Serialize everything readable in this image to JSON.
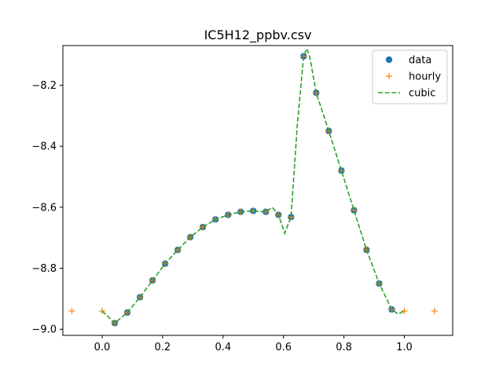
{
  "chart_data": {
    "type": "line",
    "title": "IC5H12_ppbv.csv",
    "xlabel": "",
    "ylabel": "",
    "xlim": [
      -0.13,
      1.16
    ],
    "ylim": [
      -9.02,
      -8.07
    ],
    "xticks": [
      0.0,
      0.2,
      0.4,
      0.6,
      0.8,
      1.0
    ],
    "xtick_labels": [
      "0.0",
      "0.2",
      "0.4",
      "0.6",
      "0.8",
      "1.0"
    ],
    "yticks": [
      -9.0,
      -8.8,
      -8.6,
      -8.4,
      -8.2
    ],
    "ytick_labels": [
      "−9.0",
      "−8.8",
      "−8.6",
      "−8.4",
      "−8.2"
    ],
    "grid": false,
    "legend_position": "top-right",
    "series": [
      {
        "name": "data",
        "style": "points",
        "marker": "circle",
        "color": "#1f77b4",
        "x": [
          0.0417,
          0.0833,
          0.125,
          0.1667,
          0.2083,
          0.25,
          0.2917,
          0.3333,
          0.375,
          0.4167,
          0.4583,
          0.5,
          0.5417,
          0.5833,
          0.625,
          0.6667,
          0.7083,
          0.75,
          0.7917,
          0.8333,
          0.875,
          0.9167,
          0.9583
        ],
        "y": [
          -8.98,
          -8.945,
          -8.895,
          -8.84,
          -8.785,
          -8.74,
          -8.698,
          -8.665,
          -8.64,
          -8.625,
          -8.615,
          -8.612,
          -8.615,
          -8.625,
          -8.632,
          -8.105,
          -8.225,
          -8.35,
          -8.48,
          -8.61,
          -8.74,
          -8.85,
          -8.935
        ]
      },
      {
        "name": "hourly",
        "style": "points",
        "marker": "plus",
        "color": "#ff7f0e",
        "x": [
          -0.1,
          0.0,
          0.0417,
          0.0833,
          0.125,
          0.1667,
          0.2083,
          0.25,
          0.2917,
          0.3333,
          0.375,
          0.4167,
          0.4583,
          0.5,
          0.5417,
          0.5833,
          0.625,
          0.6667,
          0.7083,
          0.75,
          0.7917,
          0.8333,
          0.875,
          0.9167,
          0.9583,
          1.0,
          1.1
        ],
        "y": [
          -8.94,
          -8.94,
          -8.98,
          -8.945,
          -8.895,
          -8.84,
          -8.785,
          -8.74,
          -8.698,
          -8.665,
          -8.64,
          -8.625,
          -8.615,
          -8.612,
          -8.615,
          -8.625,
          -8.632,
          -8.105,
          -8.225,
          -8.35,
          -8.48,
          -8.61,
          -8.74,
          -8.85,
          -8.935,
          -8.94,
          -8.94
        ]
      },
      {
        "name": "cubic",
        "style": "dashed-line",
        "color": "#2ca02c",
        "x": [
          0.0,
          0.0417,
          0.0833,
          0.125,
          0.1667,
          0.2083,
          0.25,
          0.2917,
          0.3333,
          0.375,
          0.4167,
          0.4583,
          0.5,
          0.5417,
          0.5625,
          0.5833,
          0.6042,
          0.625,
          0.6458,
          0.6667,
          0.6771,
          0.6875,
          0.7083,
          0.75,
          0.7917,
          0.8333,
          0.875,
          0.9167,
          0.9583,
          0.9792,
          1.0
        ],
        "y": [
          -8.94,
          -8.98,
          -8.945,
          -8.895,
          -8.84,
          -8.785,
          -8.74,
          -8.698,
          -8.665,
          -8.64,
          -8.625,
          -8.615,
          -8.612,
          -8.615,
          -8.6,
          -8.625,
          -8.685,
          -8.632,
          -8.33,
          -8.105,
          -8.08,
          -8.11,
          -8.225,
          -8.35,
          -8.48,
          -8.61,
          -8.74,
          -8.85,
          -8.935,
          -8.95,
          -8.94
        ]
      }
    ]
  }
}
